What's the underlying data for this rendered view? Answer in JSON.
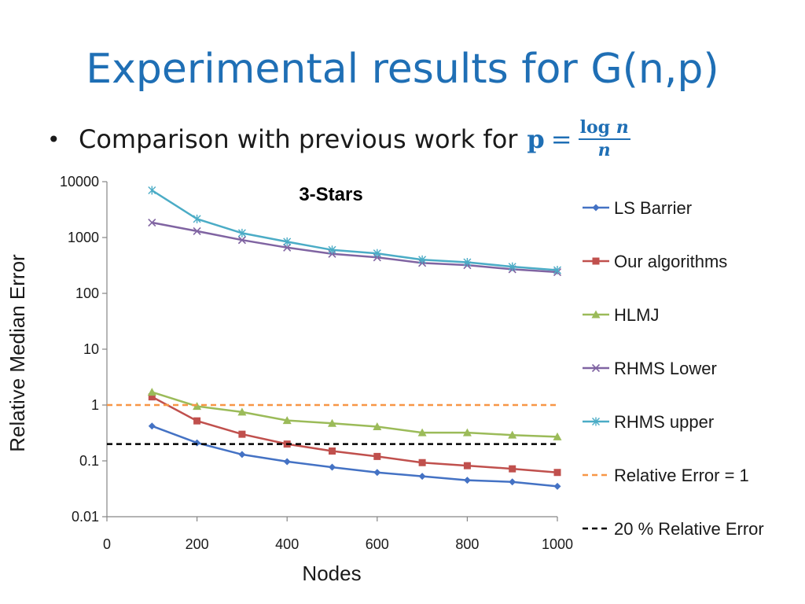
{
  "slide": {
    "title": "Experimental results for G(n,p)",
    "bullet": "Comparison with previous work for",
    "formula": {
      "lhs": "p",
      "eq": "=",
      "num_op": "log",
      "num_var": "n",
      "den": "n"
    }
  },
  "colors": {
    "title": "#1F6FB5",
    "LS Barrier": "#4472C4",
    "Our algorithms": "#C0504D",
    "HLMJ": "#9BBB59",
    "RHMS Lower": "#8064A2",
    "RHMS upper": "#4BACC6",
    "Relative Error = 1": "#F79646",
    "20 % Relative Error": "#000000"
  },
  "chart_data": {
    "type": "line",
    "title": "3-Stars",
    "xlabel": "Nodes",
    "ylabel": "Relative Median Error",
    "xlim": [
      0,
      1000
    ],
    "ylim": [
      0.01,
      10000
    ],
    "yscale": "log",
    "grid": false,
    "legend_position": "right",
    "xticks": [
      "0",
      "200",
      "400",
      "600",
      "800",
      "1000"
    ],
    "yticks": [
      "0.01",
      "0.1",
      "1",
      "10",
      "100",
      "1000",
      "10000"
    ],
    "x": [
      100,
      200,
      300,
      400,
      500,
      600,
      700,
      800,
      900,
      1000
    ],
    "series": [
      {
        "name": "LS Barrier",
        "marker": "diamond",
        "style": "solid",
        "values": [
          0.42,
          0.21,
          0.13,
          0.097,
          0.077,
          0.062,
          0.053,
          0.045,
          0.042,
          0.035
        ]
      },
      {
        "name": "Our algorithms",
        "marker": "square",
        "style": "solid",
        "values": [
          1.4,
          0.52,
          0.3,
          0.2,
          0.15,
          0.12,
          0.093,
          0.082,
          0.072,
          0.062
        ]
      },
      {
        "name": "HLMJ",
        "marker": "triangle",
        "style": "solid",
        "values": [
          1.7,
          0.95,
          0.75,
          0.53,
          0.47,
          0.41,
          0.32,
          0.32,
          0.29,
          0.27
        ]
      },
      {
        "name": "RHMS Lower",
        "marker": "x",
        "style": "solid",
        "values": [
          1850,
          1300,
          900,
          660,
          510,
          440,
          350,
          320,
          270,
          240
        ]
      },
      {
        "name": "RHMS upper",
        "marker": "asterisk",
        "style": "solid",
        "values": [
          7000,
          2150,
          1200,
          840,
          600,
          520,
          400,
          360,
          300,
          260
        ]
      },
      {
        "name": "Relative Error = 1",
        "marker": "none",
        "style": "dashed",
        "x": [
          0,
          1000
        ],
        "values": [
          1,
          1
        ]
      },
      {
        "name": "20 % Relative Error",
        "marker": "none",
        "style": "dashed",
        "x": [
          0,
          1000
        ],
        "values": [
          0.2,
          0.2
        ]
      }
    ]
  }
}
